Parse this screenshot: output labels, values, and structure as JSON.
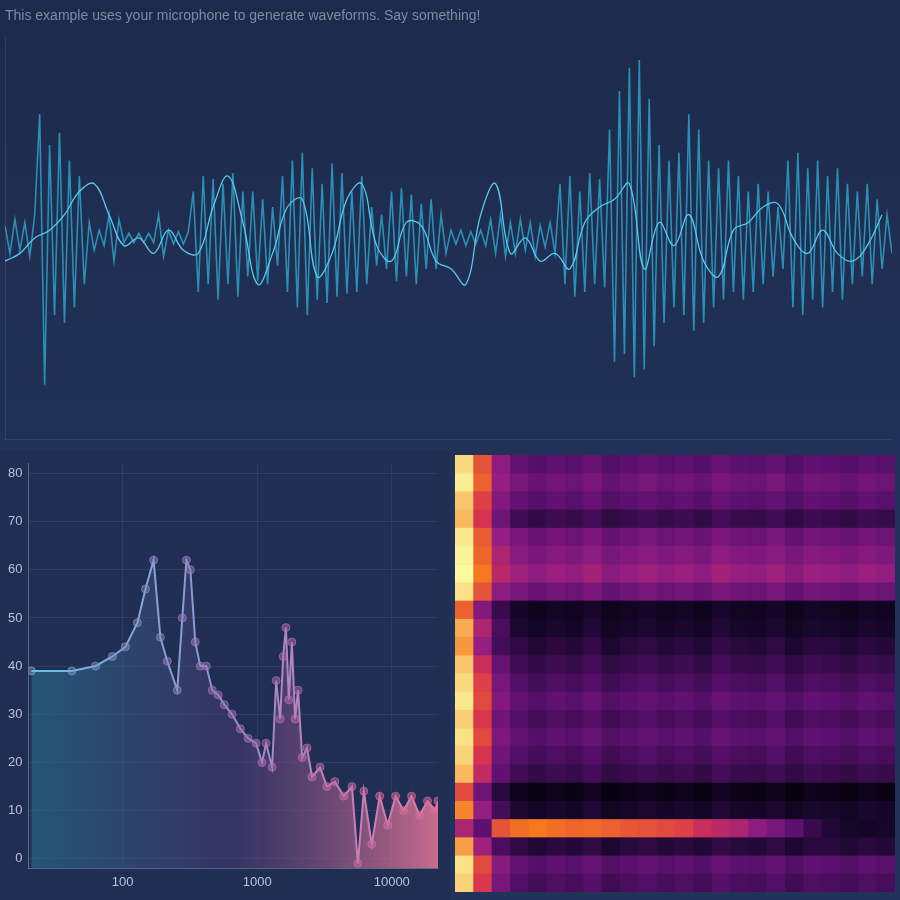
{
  "chart_data": [
    {
      "type": "line",
      "title": "This example uses your microphone to generate waveforms. Say something!",
      "grid": false,
      "tick_labels": false,
      "xlim": [
        0,
        179
      ],
      "ylim": [
        -1.3,
        1.3
      ],
      "series": [
        {
          "color": "#2b8fb3",
          "x": [
            0,
            1,
            2,
            3,
            4,
            5,
            6,
            7,
            8,
            9,
            10,
            11,
            12,
            13,
            14,
            15,
            16,
            17,
            18,
            19,
            20,
            21,
            22,
            23,
            24,
            25,
            26,
            27,
            28,
            29,
            30,
            31,
            32,
            33,
            34,
            35,
            36,
            37,
            38,
            39,
            40,
            41,
            42,
            43,
            44,
            45,
            46,
            47,
            48,
            49,
            50,
            51,
            52,
            53,
            54,
            55,
            56,
            57,
            58,
            59,
            60,
            61,
            62,
            63,
            64,
            65,
            66,
            67,
            68,
            69,
            70,
            71,
            72,
            73,
            74,
            75,
            76,
            77,
            78,
            79,
            80,
            81,
            82,
            83,
            84,
            85,
            86,
            87,
            88,
            89,
            90,
            91,
            92,
            93,
            94,
            95,
            96,
            97,
            98,
            99,
            100,
            101,
            102,
            103,
            104,
            105,
            106,
            107,
            108,
            109,
            110,
            111,
            112,
            113,
            114,
            115,
            116,
            117,
            118,
            119,
            120,
            121,
            122,
            123,
            124,
            125,
            126,
            127,
            128,
            129,
            130,
            131,
            132,
            133,
            134,
            135,
            136,
            137,
            138,
            139,
            140,
            141,
            142,
            143,
            144,
            145,
            146,
            147,
            148,
            149,
            150,
            151,
            152,
            153,
            154,
            155,
            156,
            157,
            158,
            159,
            160,
            161,
            162,
            163,
            164,
            165,
            166,
            167,
            168,
            169,
            170,
            171,
            172,
            173,
            174,
            175,
            176,
            177,
            178,
            179
          ],
          "values": [
            0.08,
            -0.1,
            0.12,
            -0.08,
            0.1,
            -0.12,
            0.15,
            0.8,
            -0.95,
            0.6,
            -0.5,
            0.68,
            -0.55,
            0.5,
            -0.45,
            0.4,
            -0.3,
            0.1,
            -0.08,
            0.05,
            -0.05,
            0.15,
            -0.15,
            0.12,
            -0.03,
            0.03,
            -0.03,
            0.03,
            -0.03,
            0.03,
            -0.03,
            0.15,
            -0.12,
            0.05,
            -0.04,
            0.04,
            -0.04,
            0.04,
            0.3,
            -0.35,
            0.4,
            -0.3,
            0.38,
            -0.4,
            0.35,
            -0.3,
            0.42,
            -0.38,
            0.3,
            -0.25,
            0.3,
            -0.28,
            0.25,
            -0.3,
            0.2,
            -0.18,
            0.4,
            -0.35,
            0.5,
            -0.45,
            0.55,
            -0.5,
            0.45,
            -0.4,
            0.35,
            -0.42,
            0.48,
            -0.38,
            0.42,
            -0.36,
            0.3,
            -0.35,
            0.4,
            -0.3,
            0.2,
            -0.18,
            0.15,
            -0.2,
            0.3,
            -0.28,
            0.32,
            -0.25,
            0.28,
            -0.3,
            0.22,
            -0.2,
            0.25,
            -0.2,
            0.15,
            -0.1,
            0.05,
            -0.04,
            0.05,
            -0.05,
            0.04,
            -0.04,
            0.05,
            -0.05,
            0.12,
            -0.1,
            0.15,
            -0.12,
            0.1,
            -0.1,
            0.12,
            -0.08,
            0.1,
            -0.12,
            0.08,
            -0.06,
            0.1,
            -0.1,
            0.35,
            -0.3,
            0.4,
            -0.38,
            0.3,
            -0.35,
            0.42,
            -0.3,
            0.38,
            -0.32,
            0.7,
            -0.8,
            0.95,
            -0.75,
            1.1,
            -0.9,
            1.15,
            -0.85,
            0.9,
            -0.7,
            0.6,
            -0.55,
            0.5,
            -0.45,
            0.55,
            -0.5,
            0.8,
            -0.6,
            0.7,
            -0.55,
            0.5,
            -0.45,
            0.45,
            -0.4,
            0.5,
            -0.35,
            0.4,
            -0.4,
            0.3,
            -0.35,
            0.35,
            -0.3,
            0.3,
            -0.25,
            0.2,
            -0.2,
            0.5,
            -0.45,
            0.55,
            -0.5,
            0.45,
            -0.4,
            0.5,
            -0.45,
            0.4,
            -0.35,
            0.45,
            -0.4,
            0.35,
            -0.3,
            0.3,
            -0.25,
            0.35,
            -0.3,
            0.25,
            -0.2,
            0.15,
            -0.1
          ]
        },
        {
          "color": "#58c8ec",
          "x": [
            0,
            3,
            6,
            9,
            12,
            15,
            18,
            21,
            24,
            27,
            30,
            33,
            36,
            39,
            42,
            45,
            48,
            51,
            54,
            57,
            60,
            63,
            66,
            69,
            72,
            75,
            78,
            81,
            84,
            87,
            90,
            93,
            96,
            99,
            102,
            105,
            108,
            111,
            114,
            117,
            120,
            123,
            126,
            129,
            132,
            135,
            138,
            141,
            144,
            147,
            150,
            153,
            156,
            159,
            162,
            165,
            168,
            171,
            174,
            177
          ],
          "values": [
            -0.15,
            -0.1,
            0.0,
            0.05,
            0.15,
            0.3,
            0.35,
            0.15,
            -0.05,
            0.0,
            -0.1,
            0.05,
            -0.08,
            -0.1,
            0.2,
            0.4,
            0.1,
            -0.3,
            -0.1,
            0.2,
            0.25,
            -0.25,
            -0.1,
            0.25,
            0.35,
            -0.05,
            -0.15,
            0.1,
            0.08,
            -0.15,
            -0.2,
            -0.3,
            0.15,
            0.35,
            -0.1,
            0.0,
            -0.15,
            -0.1,
            -0.2,
            0.1,
            0.2,
            0.25,
            0.35,
            -0.2,
            0.1,
            -0.05,
            0.15,
            -0.15,
            -0.25,
            0.05,
            0.1,
            0.2,
            0.22,
            0.0,
            -0.1,
            0.05,
            -0.1,
            -0.15,
            -0.05,
            0.15
          ]
        }
      ]
    },
    {
      "type": "line",
      "log": "x",
      "grid": true,
      "marker": "circle",
      "xlim": [
        20,
        22050
      ],
      "ylim": [
        -2,
        82
      ],
      "xticks": [
        100,
        1000,
        10000
      ],
      "yticks": [
        0,
        10,
        20,
        30,
        40,
        50,
        60,
        70,
        80
      ],
      "x": [
        21,
        42,
        63,
        84,
        105,
        129,
        148,
        170,
        191,
        215,
        255,
        278,
        298,
        319,
        347,
        378,
        419,
        464,
        514,
        570,
        652,
        750,
        857,
        981,
        1088,
        1165,
        1292,
        1384,
        1482,
        1560,
        1635,
        1720,
        1810,
        1914,
        2012,
        2160,
        2346,
        2558,
        2930,
        3296,
        3775,
        4400,
        5063,
        5600,
        6200,
        7100,
        8130,
        9320,
        10680,
        12240,
        14030,
        16080,
        18430,
        21120,
        22050
      ],
      "values": [
        39,
        39,
        40,
        42,
        44,
        49,
        56,
        62,
        46,
        41,
        35,
        50,
        62,
        60,
        45,
        40,
        40,
        35,
        34,
        32,
        30,
        27,
        25,
        24,
        20,
        24,
        19,
        37,
        29,
        42,
        48,
        33,
        45,
        29,
        35,
        21,
        23,
        17,
        19,
        15,
        16,
        13,
        15,
        -1,
        14,
        3,
        13,
        7,
        13,
        10,
        13,
        9,
        12,
        10,
        12
      ]
    },
    {
      "type": "heatmap",
      "tick_labels": false,
      "cells": [
        [
          95,
          72,
          48,
          37,
          33,
          36,
          34,
          38,
          32,
          35,
          37,
          34,
          36,
          33,
          38,
          35,
          34,
          37,
          32,
          36,
          35,
          33,
          36,
          34
        ],
        [
          98,
          75,
          50,
          42,
          38,
          41,
          39,
          43,
          37,
          40,
          42,
          39,
          41,
          38,
          43,
          40,
          39,
          42,
          37,
          41,
          40,
          38,
          41,
          39
        ],
        [
          92,
          68,
          45,
          37,
          33,
          36,
          34,
          38,
          32,
          35,
          37,
          34,
          36,
          33,
          38,
          35,
          34,
          37,
          32,
          36,
          35,
          33,
          36,
          34
        ],
        [
          90,
          65,
          40,
          27,
          23,
          26,
          24,
          28,
          22,
          25,
          27,
          24,
          26,
          23,
          28,
          25,
          24,
          27,
          22,
          26,
          25,
          23,
          26,
          24
        ],
        [
          97,
          74,
          50,
          42,
          38,
          41,
          39,
          43,
          37,
          40,
          42,
          39,
          41,
          38,
          43,
          40,
          39,
          42,
          37,
          41,
          40,
          38,
          41,
          39
        ],
        [
          99,
          76,
          55,
          47,
          43,
          46,
          44,
          48,
          42,
          45,
          47,
          44,
          46,
          43,
          48,
          45,
          44,
          47,
          42,
          46,
          45,
          43,
          46,
          44
        ],
        [
          100,
          80,
          58,
          52,
          48,
          51,
          49,
          53,
          47,
          50,
          52,
          49,
          51,
          48,
          53,
          50,
          49,
          52,
          47,
          51,
          50,
          48,
          51,
          49
        ],
        [
          96,
          72,
          48,
          42,
          38,
          41,
          39,
          43,
          37,
          40,
          42,
          39,
          41,
          38,
          43,
          40,
          39,
          42,
          37,
          41,
          40,
          38,
          41,
          39
        ],
        [
          75,
          45,
          25,
          14,
          10,
          13,
          11,
          15,
          9,
          12,
          14,
          11,
          13,
          10,
          15,
          12,
          11,
          14,
          9,
          13,
          12,
          10,
          13,
          11
        ],
        [
          88,
          55,
          30,
          17,
          13,
          16,
          14,
          18,
          12,
          15,
          17,
          14,
          16,
          13,
          18,
          15,
          14,
          17,
          12,
          16,
          15,
          13,
          16,
          14
        ],
        [
          85,
          50,
          28,
          22,
          18,
          21,
          19,
          23,
          17,
          20,
          22,
          19,
          21,
          18,
          23,
          20,
          19,
          22,
          17,
          21,
          20,
          18,
          21,
          19
        ],
        [
          92,
          62,
          38,
          27,
          23,
          26,
          24,
          28,
          22,
          25,
          27,
          24,
          26,
          23,
          28,
          25,
          24,
          27,
          22,
          26,
          25,
          23,
          26,
          24
        ],
        [
          95,
          68,
          42,
          32,
          28,
          31,
          29,
          33,
          27,
          30,
          32,
          29,
          31,
          28,
          33,
          30,
          29,
          32,
          27,
          31,
          30,
          28,
          31,
          29
        ],
        [
          97,
          70,
          45,
          37,
          33,
          36,
          34,
          38,
          32,
          35,
          37,
          34,
          36,
          33,
          38,
          35,
          34,
          37,
          32,
          36,
          35,
          33,
          36,
          34
        ],
        [
          93,
          66,
          40,
          32,
          28,
          31,
          29,
          33,
          27,
          30,
          32,
          29,
          31,
          28,
          33,
          30,
          29,
          32,
          27,
          31,
          30,
          28,
          31,
          29
        ],
        [
          96,
          70,
          44,
          37,
          33,
          36,
          34,
          38,
          32,
          35,
          37,
          34,
          36,
          33,
          38,
          35,
          34,
          37,
          32,
          36,
          35,
          33,
          36,
          34
        ],
        [
          94,
          65,
          40,
          32,
          28,
          31,
          29,
          33,
          27,
          30,
          32,
          29,
          31,
          28,
          33,
          30,
          29,
          32,
          27,
          31,
          30,
          28,
          31,
          29
        ],
        [
          90,
          60,
          36,
          27,
          23,
          26,
          24,
          28,
          22,
          25,
          27,
          24,
          26,
          23,
          28,
          25,
          24,
          27,
          22,
          26,
          25,
          23,
          26,
          24
        ],
        [
          70,
          40,
          20,
          10,
          6,
          9,
          7,
          11,
          5,
          8,
          10,
          7,
          9,
          6,
          11,
          8,
          7,
          10,
          5,
          9,
          8,
          6,
          9,
          7
        ],
        [
          82,
          50,
          28,
          17,
          13,
          16,
          14,
          18,
          12,
          15,
          17,
          14,
          16,
          13,
          18,
          15,
          14,
          17,
          12,
          16,
          15,
          13,
          16,
          14
        ],
        [
          55,
          35,
          72,
          78,
          80,
          78,
          76,
          77,
          75,
          73,
          72,
          70,
          68,
          62,
          58,
          55,
          48,
          42,
          35,
          25,
          18,
          15,
          14,
          15
        ],
        [
          86,
          52,
          30,
          22,
          18,
          21,
          19,
          23,
          17,
          20,
          22,
          19,
          21,
          18,
          23,
          20,
          19,
          22,
          17,
          21,
          20,
          18,
          21,
          19
        ],
        [
          96,
          70,
          46,
          37,
          33,
          36,
          34,
          38,
          32,
          35,
          37,
          34,
          36,
          33,
          38,
          35,
          34,
          37,
          32,
          36,
          35,
          33,
          36,
          34
        ],
        [
          94,
          66,
          42,
          32,
          28,
          31,
          29,
          33,
          27,
          30,
          32,
          29,
          31,
          28,
          33,
          30,
          29,
          32,
          27,
          31,
          30,
          28,
          31,
          29
        ]
      ]
    }
  ]
}
